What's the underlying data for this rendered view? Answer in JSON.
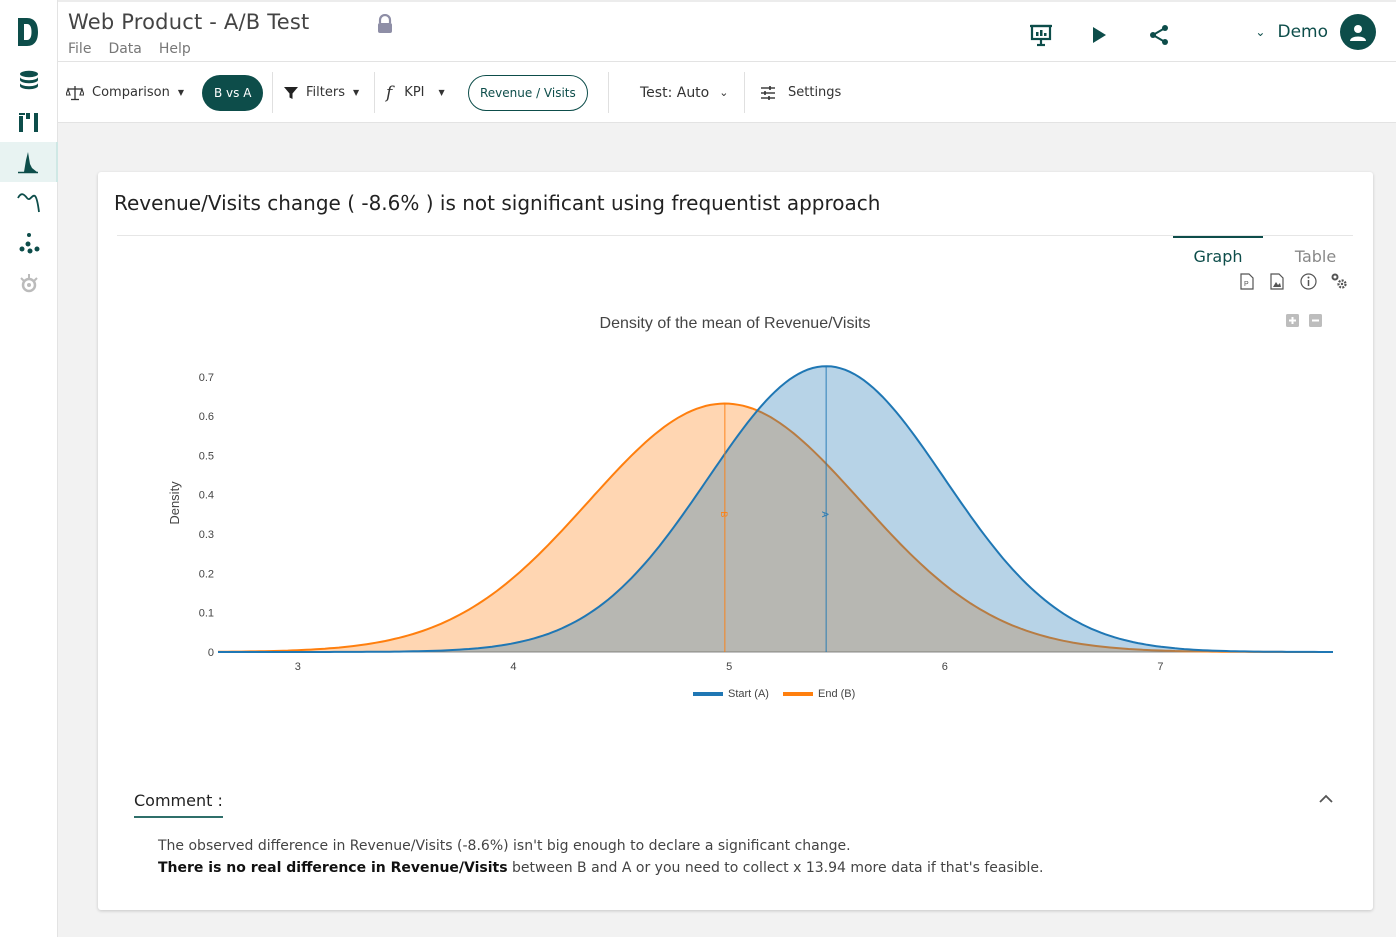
{
  "app": {
    "title": "Web Product - A/B Test",
    "menu": [
      "File",
      "Data",
      "Help"
    ],
    "user_name": "Demo"
  },
  "toolbar": {
    "comparison_label": "Comparison",
    "bvsa_label": "B vs A",
    "filters_label": "Filters",
    "kpi_label": "KPI",
    "kpi_value": "Revenue / Visits",
    "test_label": "Test: Auto",
    "settings_label": "Settings"
  },
  "card": {
    "title": "Revenue/Visits change ( -8.6% ) is not significant using frequentist approach",
    "tabs": [
      "Graph",
      "Table"
    ]
  },
  "comment": {
    "label": "Comment :",
    "line1": "The observed difference in Revenue/Visits (-8.6%) isn't big enough to declare a significant change.",
    "line2_bold": "There is no real difference in Revenue/Visits",
    "line2_rest": " between B and A or you need to collect x 13.94 more data if that's feasible."
  },
  "colors": {
    "brand": "#0d4d4a",
    "series_a": "#1f77b4",
    "series_b": "#ff7f0e"
  },
  "chart_data": {
    "type": "area",
    "title": "Density of the mean of Revenue/Visits",
    "xlabel": "",
    "ylabel": "Density",
    "xlim": [
      2.63,
      7.8
    ],
    "ylim": [
      0,
      0.73
    ],
    "xticks": [
      3,
      4,
      5,
      6,
      7
    ],
    "yticks": [
      0,
      0.1,
      0.2,
      0.3,
      0.4,
      0.5,
      0.6,
      0.7
    ],
    "legend_position": "bottom",
    "series": [
      {
        "name": "Start (A)",
        "marker_label": "A",
        "mean": 5.45,
        "peak": 0.727,
        "sd": 0.549
      },
      {
        "name": "End (B)",
        "marker_label": "B",
        "mean": 4.98,
        "peak": 0.632,
        "sd": 0.631
      }
    ]
  }
}
